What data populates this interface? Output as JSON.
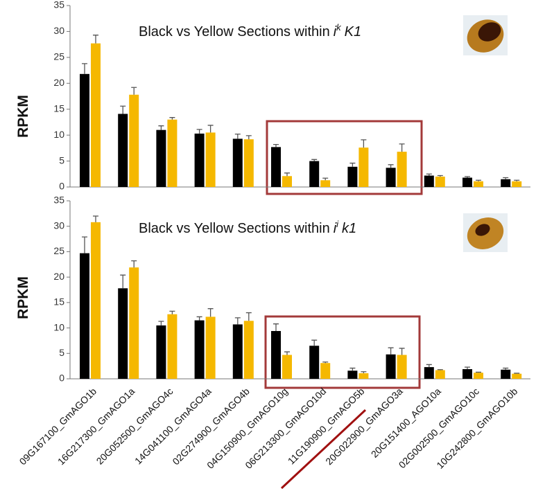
{
  "chart_data": [
    {
      "type": "bar",
      "title": {
        "text": "Black vs Yellow Sections within",
        "gene": "i",
        "superscript": "k",
        "locus": "K1"
      },
      "y_label": "RPKM",
      "ylim": [
        0,
        35
      ],
      "yticks": [
        0,
        5,
        10,
        15,
        20,
        25,
        30,
        35
      ],
      "series": [
        {
          "color": "#000000",
          "values": [
            21.8,
            14.1,
            11.0,
            10.3,
            9.3,
            7.7,
            5.0,
            3.9,
            3.7,
            2.2,
            1.8,
            1.5
          ],
          "errors": [
            2.0,
            1.5,
            0.8,
            0.8,
            0.9,
            0.5,
            0.3,
            0.7,
            0.6,
            0.3,
            0.2,
            0.3
          ]
        },
        {
          "color": "#f5b800",
          "values": [
            27.7,
            17.8,
            13.0,
            10.5,
            9.2,
            2.1,
            1.3,
            7.6,
            6.8,
            2.0,
            1.1,
            1.1
          ],
          "errors": [
            1.6,
            1.4,
            0.4,
            1.4,
            0.7,
            0.6,
            0.4,
            1.5,
            1.5,
            0.2,
            0.2,
            0.2
          ]
        }
      ]
    },
    {
      "type": "bar",
      "title": {
        "text": "Black vs Yellow Sections within",
        "gene": "i",
        "superscript": "i",
        "locus": "k1"
      },
      "y_label": "RPKM",
      "ylim": [
        0,
        35
      ],
      "yticks": [
        0,
        5,
        10,
        15,
        20,
        25,
        30,
        35
      ],
      "categories": [
        "09G167100_GmAGO1b",
        "16G217300_GmAGO1a",
        "20G052500_GmAGO4c",
        "14G041100_GmAGO4a",
        "02G274900_GmAGO4b",
        "04G150900_GmAGO10g",
        "06G213300_GmAGO10d",
        "11G190900_GmAGO5b",
        "20G022900_GmAGO3a",
        "20G151400_AGO10a",
        "02G002500_GmAGO10c",
        "10G242800_GmAGO10b"
      ],
      "series": [
        {
          "color": "#000000",
          "values": [
            24.7,
            17.8,
            10.5,
            11.5,
            10.7,
            9.4,
            6.5,
            1.6,
            4.8,
            2.3,
            1.9,
            1.8
          ],
          "errors": [
            3.2,
            2.6,
            0.8,
            0.7,
            1.3,
            1.4,
            1.1,
            0.5,
            1.3,
            0.5,
            0.4,
            0.3
          ]
        },
        {
          "color": "#f5b800",
          "values": [
            30.8,
            21.9,
            12.7,
            12.2,
            11.4,
            4.7,
            3.1,
            1.1,
            4.7,
            1.7,
            1.2,
            1.0
          ],
          "errors": [
            1.2,
            1.3,
            0.6,
            1.6,
            1.6,
            0.6,
            0.2,
            0.3,
            1.3,
            0.1,
            0.1,
            0.1
          ]
        }
      ]
    }
  ]
}
